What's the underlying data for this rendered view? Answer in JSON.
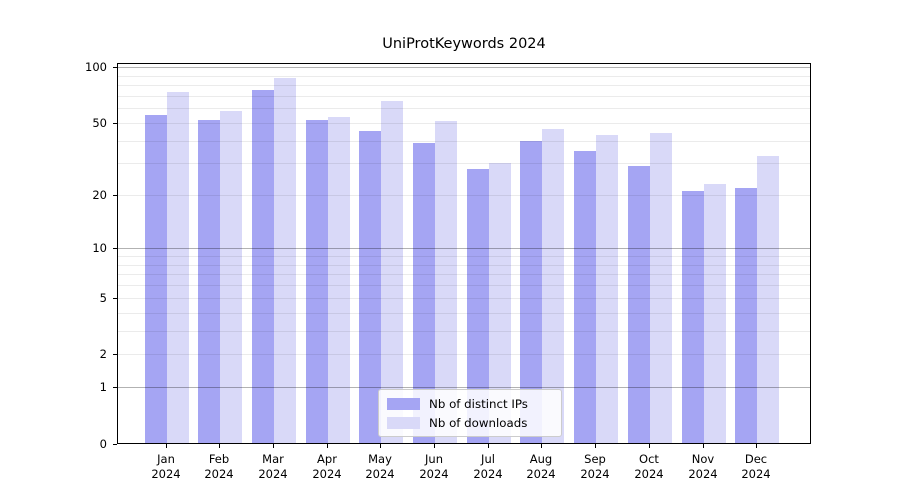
{
  "figure": {
    "title": "UniProtKeywords 2024",
    "background_color": "#ffffff"
  },
  "chart_data": {
    "type": "bar",
    "title": "UniProtKeywords 2024",
    "categories": [
      "Jan",
      "Feb",
      "Mar",
      "Apr",
      "May",
      "Jun",
      "Jul",
      "Aug",
      "Sep",
      "Oct",
      "Nov",
      "Dec"
    ],
    "category_year_label": "2024",
    "series": [
      {
        "name": "Nb of distinct IPs",
        "color": "#a5a5f3",
        "values": [
          55,
          52,
          75,
          52,
          45,
          39,
          28,
          40,
          35,
          29,
          21,
          22
        ]
      },
      {
        "name": "Nb of downloads",
        "color": "#d9d9f8",
        "values": [
          73,
          58,
          87,
          54,
          66,
          51,
          30,
          46,
          43,
          44,
          23,
          33
        ]
      }
    ],
    "xlabel": "",
    "ylabel": "",
    "yscale": "log1p",
    "ylim": [
      0,
      105
    ],
    "ytick_labels": [
      0,
      1,
      2,
      5,
      10,
      20,
      50,
      100
    ],
    "major_gridlines": [
      1,
      10,
      100
    ],
    "minor_gridlines": [
      2,
      3,
      4,
      5,
      6,
      7,
      8,
      9,
      20,
      30,
      40,
      50,
      60,
      70,
      80,
      90
    ],
    "grid": true,
    "legend_position": "lower center",
    "axis_color": "#000000",
    "major_grid_color": "#b3b3b3",
    "minor_grid_color": "#ebebeb"
  }
}
